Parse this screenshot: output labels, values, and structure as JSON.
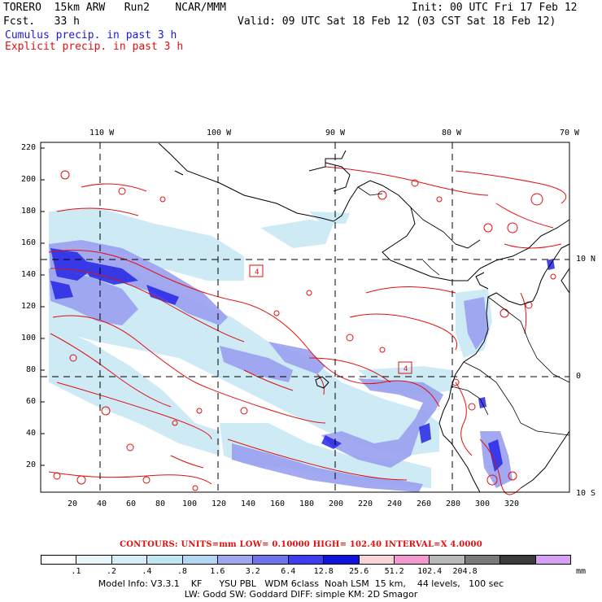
{
  "header": {
    "model": "TORERO  15km ARW   Run2    NCAR/MMM",
    "init": "Init: 00 UTC Fri 17 Feb 12",
    "fcst": "Fcst.   33 h",
    "valid": "Valid: 09 UTC Sat 18 Feb 12 (03 CST Sat 18 Feb 12)",
    "field1": "Cumulus precip. in past 3 h",
    "field2": "Explicit precip. in past 3 h"
  },
  "axes": {
    "top_lon": [
      "110 W",
      "100 W",
      "90 W",
      "80 W",
      "70 W"
    ],
    "right_lat": [
      "10 N",
      "0",
      "10 S"
    ],
    "left_y": [
      "220",
      "200",
      "180",
      "160",
      "140",
      "120",
      "100",
      "80",
      "60",
      "40",
      "20"
    ],
    "bottom_x": [
      "20",
      "40",
      "60",
      "80",
      "100",
      "120",
      "140",
      "160",
      "180",
      "200",
      "220",
      "240",
      "260",
      "280",
      "300",
      "320"
    ]
  },
  "map_labels": {
    "low_marker_1": "4",
    "low_marker_2": "4"
  },
  "contours_text": "CONTOURS:  UNITS=mm  LOW= 0.10000      HIGH=  102.40      INTERVAL=X  4.0000",
  "legend": {
    "colors": [
      "#ffffff",
      "#e8f6fb",
      "#d6eff7",
      "#c2e5f2",
      "#b4d8f4",
      "#a3a7f2",
      "#6f74ee",
      "#3d3df0",
      "#1212e0",
      "#f9d4d4",
      "#f29ad0",
      "#b9b9b9",
      "#7a7a7a",
      "#3a3a3a",
      "#d6a0f6"
    ],
    "labels": [
      ".1",
      ".2",
      ".4",
      ".8",
      "1.6",
      "3.2",
      "6.4",
      "12.8",
      "25.6",
      "51.2",
      "102.4",
      "204.8"
    ],
    "unit": "mm"
  },
  "model_info_1": "Model Info: V3.3.1    KF      YSU PBL   WDM 6class  Noah LSM  15 km,    44 levels,   100 sec",
  "model_info_2": "LW: Godd SW: Goddard DIFF: simple KM: 2D Smagor"
}
